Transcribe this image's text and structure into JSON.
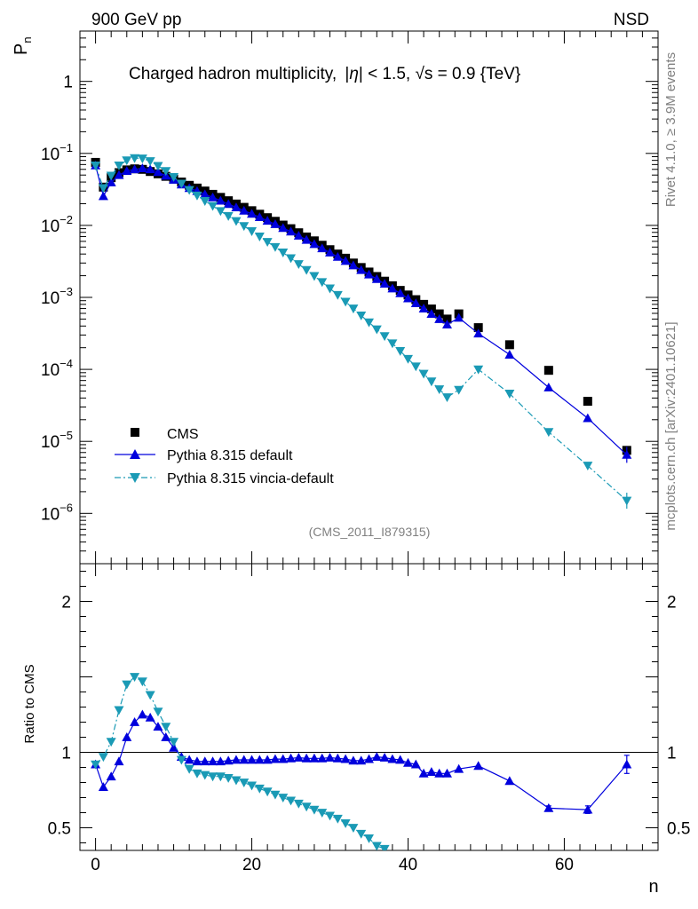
{
  "header": {
    "energy_label": "900 GeV pp",
    "process_label": "NSD"
  },
  "side_text": {
    "rivet": "Rivet 4.1.0, ≥ 3.9M events",
    "mcplots": "mcplots.cern.ch [arXiv:2401.10621]"
  },
  "chart_data": [
    {
      "type": "scatter",
      "panel": "main",
      "title": "Charged hadron multiplicity, |η| < 1.5, √s = 0.9 {TeV}",
      "title_parts": {
        "pre": "Charged hadron multiplicity,",
        "eta": "η",
        "cut": "| < 1.5,",
        "sqrt": "√",
        "s": "s",
        "post": "= 0.9 {TeV}"
      },
      "ylabel": "P",
      "ylabel_sub": "n",
      "xlabel": "n",
      "yscale": "log",
      "ylim": [
        2e-07,
        5
      ],
      "xlim": [
        -2,
        72
      ],
      "yticks": [
        {
          "v": 1,
          "base": "1",
          "exp": ""
        },
        {
          "v": 0.1,
          "base": "10",
          "exp": "−1"
        },
        {
          "v": 0.01,
          "base": "10",
          "exp": "−2"
        },
        {
          "v": 0.001,
          "base": "10",
          "exp": "−3"
        },
        {
          "v": 0.0001,
          "base": "10",
          "exp": "−4"
        },
        {
          "v": 1e-05,
          "base": "10",
          "exp": "−5"
        },
        {
          "v": 1e-06,
          "base": "10",
          "exp": "−6"
        }
      ],
      "annotation": "(CMS_2011_I879315)",
      "legend": {
        "position": "bottom-left",
        "entries": [
          "CMS",
          "Pythia 8.315 default",
          "Pythia 8.315 vincia-default"
        ]
      },
      "series": [
        {
          "name": "CMS",
          "color": "#000000",
          "marker": "square",
          "x": [
            0,
            1,
            2,
            3,
            4,
            5,
            6,
            7,
            8,
            9,
            10,
            11,
            12,
            13,
            14,
            15,
            16,
            17,
            18,
            19,
            20,
            21,
            22,
            23,
            24,
            25,
            26,
            27,
            28,
            29,
            30,
            31,
            32,
            33,
            34,
            35,
            36,
            37,
            38,
            39,
            40,
            41,
            42,
            43,
            44,
            45,
            46.5,
            49,
            53,
            58,
            63,
            68
          ],
          "y": [
            0.075,
            0.034,
            0.046,
            0.054,
            0.059,
            0.061,
            0.06,
            0.056,
            0.052,
            0.048,
            0.044,
            0.04,
            0.036,
            0.033,
            0.03,
            0.027,
            0.0245,
            0.022,
            0.0198,
            0.0178,
            0.016,
            0.0143,
            0.0128,
            0.0114,
            0.0101,
            0.009,
            0.0079,
            0.0069,
            0.0061,
            0.0053,
            0.0046,
            0.004,
            0.0035,
            0.003,
            0.0026,
            0.00225,
            0.00195,
            0.00168,
            0.00145,
            0.00125,
            0.00108,
            0.00093,
            0.0008,
            0.00069,
            0.00059,
            0.0005,
            0.00059,
            0.00038,
            0.00022,
            9.7e-05,
            3.6e-05,
            7.5e-06
          ]
        },
        {
          "name": "Pythia 8.315 default",
          "color": "#0000dd",
          "marker": "triangle-up",
          "line": "solid",
          "x": [
            0,
            1,
            2,
            3,
            4,
            5,
            6,
            7,
            8,
            9,
            10,
            11,
            12,
            13,
            14,
            15,
            16,
            17,
            18,
            19,
            20,
            21,
            22,
            23,
            24,
            25,
            26,
            27,
            28,
            29,
            30,
            31,
            32,
            33,
            34,
            35,
            36,
            37,
            38,
            39,
            40,
            41,
            42,
            43,
            44,
            45,
            46.5,
            49,
            53,
            58,
            63,
            68
          ],
          "y": [
            0.068,
            0.0255,
            0.0395,
            0.05,
            0.057,
            0.06,
            0.062,
            0.06,
            0.055,
            0.049,
            0.043,
            0.037,
            0.033,
            0.03,
            0.027,
            0.0245,
            0.022,
            0.0198,
            0.0178,
            0.016,
            0.0145,
            0.013,
            0.0116,
            0.0104,
            0.0092,
            0.0082,
            0.0072,
            0.0063,
            0.0055,
            0.0048,
            0.0042,
            0.00365,
            0.0032,
            0.00278,
            0.0024,
            0.00208,
            0.0018,
            0.00155,
            0.00133,
            0.00114,
            0.00097,
            0.00083,
            0.0007,
            0.00059,
            0.0005,
            0.00042,
            0.00052,
            0.000315,
            0.00016,
            5.6e-05,
            2.1e-05,
            6.5e-06
          ],
          "error_at": {
            "x": 68
          }
        },
        {
          "name": "Pythia 8.315 vincia-default",
          "color": "#1a9ab5",
          "marker": "triangle-down",
          "line": "dashdot",
          "x": [
            0,
            1,
            2,
            3,
            4,
            5,
            6,
            7,
            8,
            9,
            10,
            11,
            12,
            13,
            14,
            15,
            16,
            17,
            18,
            19,
            20,
            21,
            22,
            23,
            24,
            25,
            26,
            27,
            28,
            29,
            30,
            31,
            32,
            33,
            34,
            35,
            36,
            37,
            38,
            39,
            40,
            41,
            42,
            43,
            44,
            45,
            46.5,
            49,
            53,
            58,
            63,
            68
          ],
          "y": [
            0.068,
            0.033,
            0.049,
            0.068,
            0.08,
            0.086,
            0.085,
            0.078,
            0.067,
            0.057,
            0.047,
            0.038,
            0.031,
            0.026,
            0.0218,
            0.0186,
            0.0158,
            0.0135,
            0.0115,
            0.0098,
            0.0083,
            0.007,
            0.0059,
            0.005,
            0.0042,
            0.0035,
            0.0029,
            0.0024,
            0.00198,
            0.00163,
            0.00133,
            0.00108,
            0.00087,
            0.0007,
            0.00056,
            0.00045,
            0.00036,
            0.00029,
            0.00023,
            0.00018,
            0.00014,
            0.00011,
            8.7e-05,
            6.8e-05,
            5.3e-05,
            4.1e-05,
            5.2e-05,
            0.0001,
            4.6e-05,
            1.35e-05,
            4.6e-06,
            1.5e-06
          ],
          "error_at": {
            "x": 68
          }
        }
      ]
    },
    {
      "type": "line",
      "panel": "ratio",
      "ylabel": "Ratio to CMS",
      "xlabel": "n",
      "ylim": [
        0.35,
        2.25
      ],
      "xlim": [
        -2,
        72
      ],
      "reference_line": 1,
      "yticks_left": [
        {
          "v": 2,
          "label": "2"
        },
        {
          "v": 1,
          "label": "1"
        },
        {
          "v": 0.5,
          "label": "0.5"
        }
      ],
      "yticks_right": [
        {
          "v": 2,
          "label": "2"
        },
        {
          "v": 1,
          "label": "1"
        },
        {
          "v": 0.5,
          "label": "0.5"
        }
      ],
      "xticks": [
        {
          "v": 0,
          "label": "0"
        },
        {
          "v": 20,
          "label": "20"
        },
        {
          "v": 40,
          "label": "40"
        },
        {
          "v": 60,
          "label": "60"
        }
      ],
      "series": [
        {
          "name": "Pythia 8.315 default",
          "color": "#0000dd",
          "marker": "triangle-up",
          "line": "solid",
          "x": [
            0,
            1,
            2,
            3,
            4,
            5,
            6,
            7,
            8,
            9,
            10,
            11,
            12,
            13,
            14,
            15,
            16,
            17,
            18,
            19,
            20,
            21,
            22,
            23,
            24,
            25,
            26,
            27,
            28,
            29,
            30,
            31,
            32,
            33,
            34,
            35,
            36,
            37,
            38,
            39,
            40,
            41,
            42,
            43,
            44,
            45,
            46.5,
            49,
            53,
            58,
            63,
            68
          ],
          "y": [
            0.92,
            0.77,
            0.84,
            0.94,
            1.1,
            1.2,
            1.25,
            1.23,
            1.17,
            1.1,
            1.03,
            0.97,
            0.95,
            0.94,
            0.94,
            0.94,
            0.94,
            0.945,
            0.95,
            0.95,
            0.95,
            0.95,
            0.95,
            0.955,
            0.955,
            0.96,
            0.965,
            0.96,
            0.96,
            0.96,
            0.965,
            0.96,
            0.955,
            0.945,
            0.945,
            0.955,
            0.97,
            0.965,
            0.955,
            0.95,
            0.93,
            0.92,
            0.86,
            0.87,
            0.86,
            0.86,
            0.89,
            0.91,
            0.81,
            0.63,
            0.62,
            0.92
          ],
          "errors": {
            "58": 0.015,
            "63": 0.025,
            "68": 0.06
          }
        },
        {
          "name": "Pythia 8.315 vincia-default",
          "color": "#1a9ab5",
          "marker": "triangle-down",
          "line": "dashdot",
          "x": [
            0,
            1,
            2,
            3,
            4,
            5,
            6,
            7,
            8,
            9,
            10,
            11,
            12,
            13,
            14,
            15,
            16,
            17,
            18,
            19,
            20,
            21,
            22,
            23,
            24,
            25,
            26,
            27,
            28,
            29,
            30,
            31,
            32,
            33,
            34,
            35,
            36,
            37
          ],
          "y": [
            0.92,
            0.97,
            1.07,
            1.28,
            1.45,
            1.5,
            1.47,
            1.38,
            1.27,
            1.17,
            1.07,
            0.95,
            0.89,
            0.86,
            0.85,
            0.84,
            0.84,
            0.83,
            0.815,
            0.8,
            0.78,
            0.76,
            0.74,
            0.72,
            0.7,
            0.68,
            0.66,
            0.64,
            0.62,
            0.6,
            0.58,
            0.56,
            0.53,
            0.5,
            0.46,
            0.43,
            0.38,
            0.36
          ]
        }
      ]
    }
  ]
}
